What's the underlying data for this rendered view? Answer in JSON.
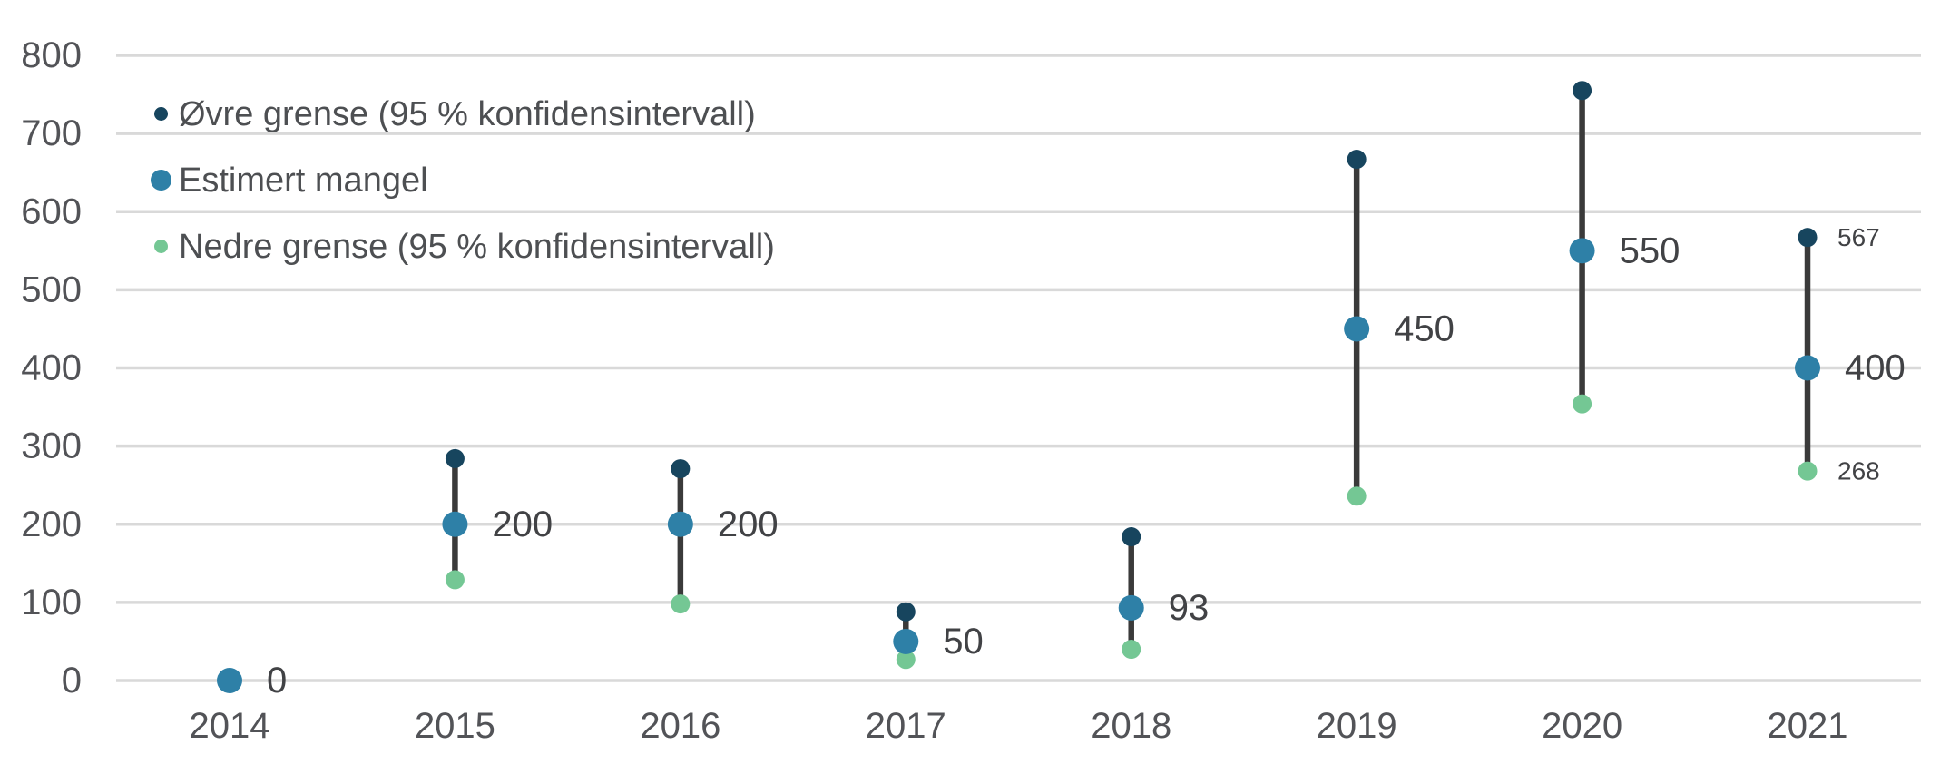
{
  "chart_data": {
    "type": "scatter",
    "subtype": "vertical-range-dot-plot",
    "title": "",
    "xlabel": "",
    "ylabel": "",
    "categories": [
      "2014",
      "2015",
      "2016",
      "2017",
      "2018",
      "2019",
      "2020",
      "2021"
    ],
    "series": [
      {
        "name": "Øvre grense (95 % konfidensintervall)",
        "role": "upper",
        "color": "#17455e",
        "values": [
          null,
          284,
          271,
          88,
          184,
          667,
          755,
          567
        ]
      },
      {
        "name": "Estimert mangel",
        "role": "estimate",
        "color": "#2e80a7",
        "values": [
          0,
          200,
          200,
          50,
          93,
          450,
          550,
          400
        ]
      },
      {
        "name": "Nedre grense (95 % konfidensintervall)",
        "role": "lower",
        "color": "#74c794",
        "values": [
          null,
          129,
          98,
          27,
          40,
          236,
          354,
          268
        ]
      }
    ],
    "point_labels": {
      "estimate": [
        "0",
        "200",
        "200",
        "50",
        "93",
        "450",
        "550",
        "400"
      ],
      "upper": [
        null,
        null,
        null,
        null,
        null,
        null,
        null,
        "567"
      ],
      "lower": [
        null,
        null,
        null,
        null,
        null,
        null,
        null,
        "268"
      ]
    },
    "ylim": [
      0,
      800
    ],
    "yticks": [
      0,
      100,
      200,
      300,
      400,
      500,
      600,
      700,
      800
    ],
    "grid": "horizontal",
    "legend_position": "top-left"
  },
  "legend": {
    "items": [
      {
        "label": "Øvre grense (95 % konfidensintervall)",
        "color": "#17455e",
        "marker": "small-dot"
      },
      {
        "label": "Estimert mangel",
        "color": "#2e80a7",
        "marker": "large-dot"
      },
      {
        "label": "Nedre grense (95 % konfidensintervall)",
        "color": "#74c794",
        "marker": "small-dot"
      }
    ]
  },
  "colors": {
    "background": "#ffffff",
    "gridline": "#d9d9d9",
    "axis_text": "#525357",
    "label_text": "#414245",
    "error_bar": "#3a3a3a",
    "upper_dot": "#17455e",
    "estimate_dot": "#2e80a7",
    "lower_dot": "#74c794"
  }
}
